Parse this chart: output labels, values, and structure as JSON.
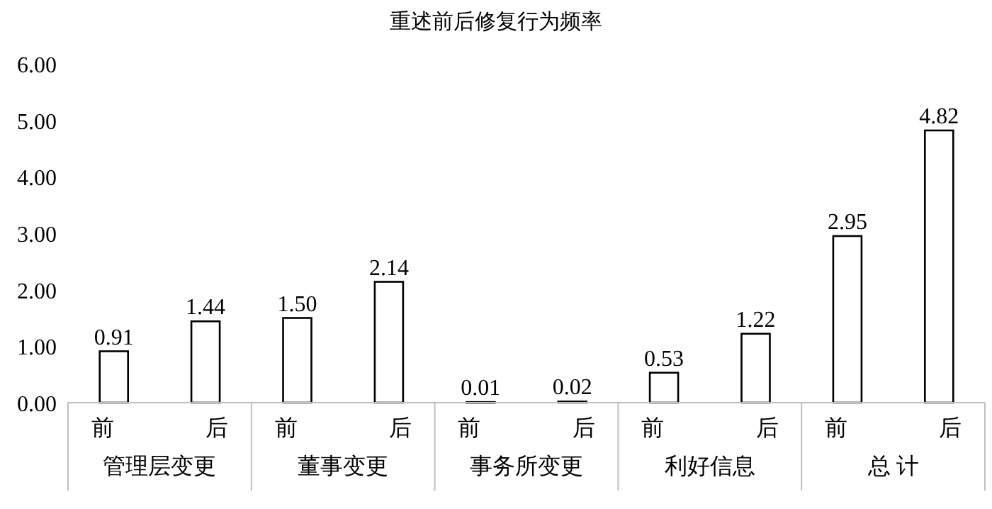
{
  "chart_data": {
    "type": "bar",
    "title": "重述前后修复行为频率",
    "categories": [
      "前",
      "后",
      "前",
      "后",
      "前",
      "后",
      "前",
      "后",
      "前",
      "后"
    ],
    "values": [
      0.91,
      1.44,
      1.5,
      2.14,
      0.01,
      0.02,
      0.53,
      1.22,
      2.95,
      4.82
    ],
    "value_labels": [
      "0.91",
      "1.44",
      "1.50",
      "2.14",
      "0.01",
      "0.02",
      "0.53",
      "1.22",
      "2.95",
      "4.82"
    ],
    "color": "#ffffff",
    "ylim": [
      0,
      6
    ],
    "yticks": [
      {
        "value": 0,
        "label": "0.00"
      },
      {
        "value": 1,
        "label": "1.00"
      },
      {
        "value": 2,
        "label": "2.00"
      },
      {
        "value": 3,
        "label": "3.00"
      },
      {
        "value": 4,
        "label": "4.00"
      },
      {
        "value": 5,
        "label": "5.00"
      },
      {
        "value": 6,
        "label": "6.00"
      }
    ],
    "annotations": [
      "管理层变更",
      "董事变更",
      "事务所变更",
      "利好信息",
      "总 计"
    ]
  }
}
